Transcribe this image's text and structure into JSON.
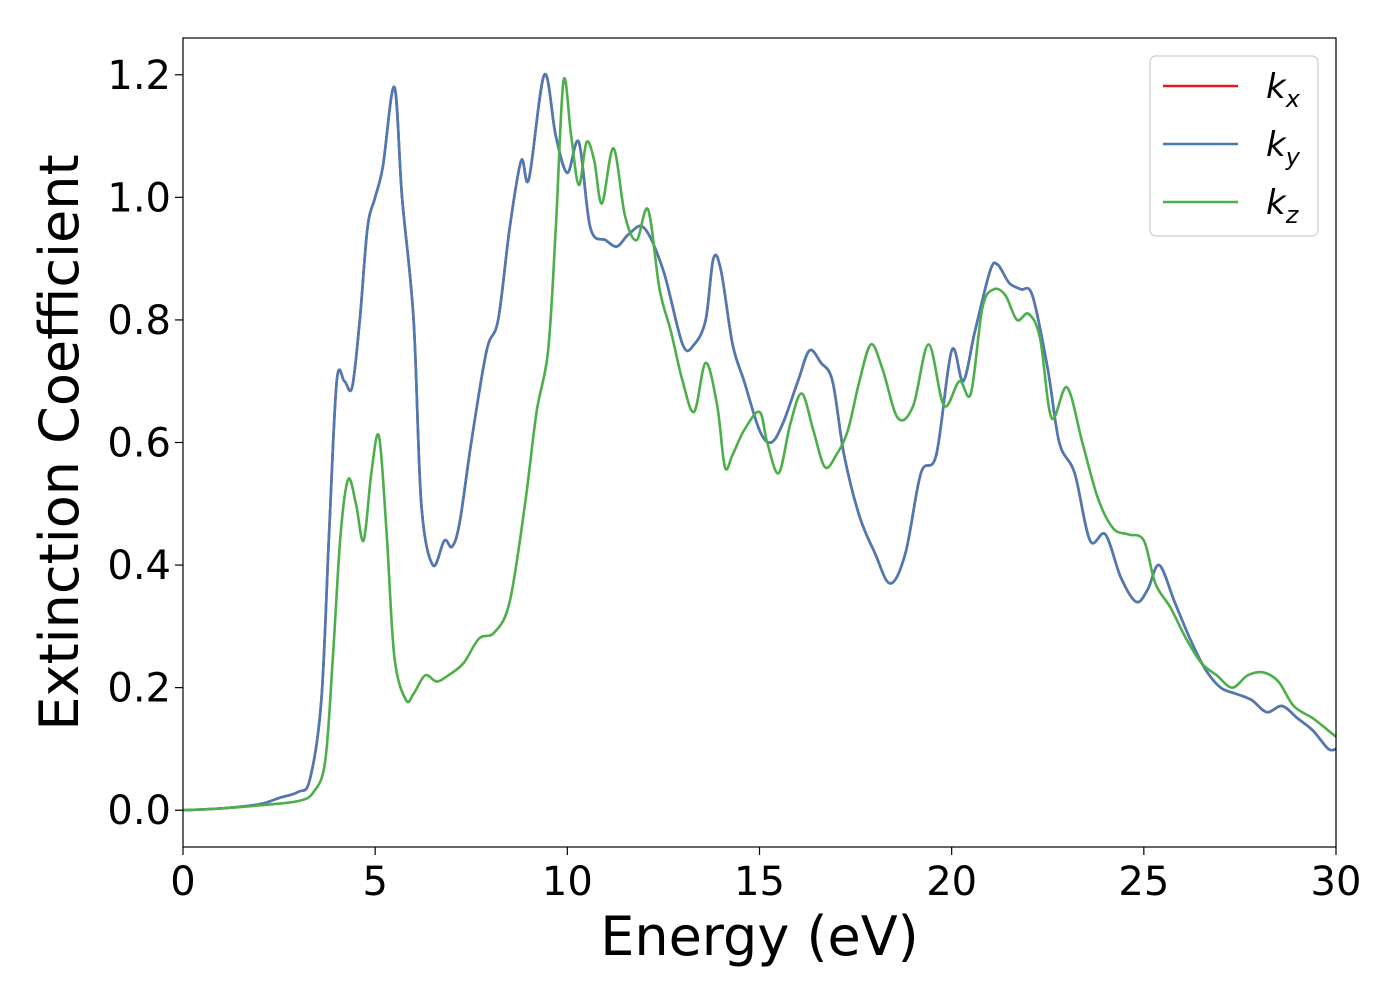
{
  "chart_data": {
    "type": "line",
    "xlabel": "Energy (eV)",
    "ylabel": "Extinction Coefficient",
    "xlim": [
      0,
      30
    ],
    "ylim": [
      -0.06,
      1.26
    ],
    "xticks": [
      "0",
      "5",
      "10",
      "15",
      "20",
      "25",
      "30"
    ],
    "yticks": [
      "0.0",
      "0.2",
      "0.4",
      "0.6",
      "0.8",
      "1.0",
      "1.2"
    ],
    "grid": false,
    "legend_position": "top-right",
    "legend": [
      {
        "base": "k",
        "sub": "x",
        "color": "#e41a1c"
      },
      {
        "base": "k",
        "sub": "y",
        "color": "#4a7bb7"
      },
      {
        "base": "k",
        "sub": "z",
        "color": "#4daf4a"
      }
    ],
    "series": [
      {
        "name": "k_x",
        "color": "#e41a1c",
        "x": [
          0,
          1,
          2,
          2.5,
          3,
          3.3,
          3.6,
          3.8,
          4.0,
          4.2,
          4.4,
          4.6,
          4.8,
          5.0,
          5.2,
          5.5,
          5.7,
          6.0,
          6.2,
          6.5,
          6.8,
          7.0,
          7.2,
          7.5,
          7.9,
          8.2,
          8.5,
          8.8,
          9.0,
          9.4,
          9.7,
          10.0,
          10.3,
          10.6,
          11.0,
          11.3,
          11.6,
          12.0,
          12.5,
          13.0,
          13.3,
          13.6,
          13.8,
          14.0,
          14.3,
          14.6,
          15.0,
          15.3,
          15.6,
          16.0,
          16.3,
          16.6,
          16.9,
          17.2,
          17.6,
          18.0,
          18.4,
          18.8,
          19.2,
          19.6,
          20.0,
          20.3,
          20.6,
          21.0,
          21.2,
          21.5,
          21.8,
          22.1,
          22.5,
          22.8,
          23.2,
          23.6,
          24.0,
          24.4,
          24.8,
          25.1,
          25.4,
          25.8,
          26.2,
          26.6,
          27.0,
          27.4,
          27.8,
          28.2,
          28.6,
          29.0,
          29.4,
          29.8,
          30.0
        ],
        "y": [
          0,
          0.003,
          0.01,
          0.02,
          0.03,
          0.05,
          0.18,
          0.45,
          0.7,
          0.7,
          0.69,
          0.8,
          0.95,
          1.0,
          1.05,
          1.18,
          1.0,
          0.8,
          0.5,
          0.4,
          0.44,
          0.43,
          0.47,
          0.6,
          0.75,
          0.8,
          0.95,
          1.06,
          1.03,
          1.2,
          1.1,
          1.04,
          1.09,
          0.95,
          0.93,
          0.92,
          0.94,
          0.95,
          0.88,
          0.76,
          0.76,
          0.8,
          0.9,
          0.88,
          0.76,
          0.7,
          0.62,
          0.6,
          0.63,
          0.7,
          0.75,
          0.73,
          0.7,
          0.58,
          0.48,
          0.42,
          0.37,
          0.42,
          0.55,
          0.58,
          0.75,
          0.7,
          0.78,
          0.88,
          0.89,
          0.86,
          0.85,
          0.84,
          0.72,
          0.6,
          0.55,
          0.44,
          0.45,
          0.38,
          0.34,
          0.36,
          0.4,
          0.34,
          0.28,
          0.23,
          0.2,
          0.19,
          0.18,
          0.16,
          0.17,
          0.15,
          0.13,
          0.1,
          0.1
        ]
      },
      {
        "name": "k_y",
        "color": "#4a7bb7",
        "x": [
          0,
          1,
          2,
          2.5,
          3,
          3.3,
          3.6,
          3.8,
          4.0,
          4.2,
          4.4,
          4.6,
          4.8,
          5.0,
          5.2,
          5.5,
          5.7,
          6.0,
          6.2,
          6.5,
          6.8,
          7.0,
          7.2,
          7.5,
          7.9,
          8.2,
          8.5,
          8.8,
          9.0,
          9.4,
          9.7,
          10.0,
          10.3,
          10.6,
          11.0,
          11.3,
          11.6,
          12.0,
          12.5,
          13.0,
          13.3,
          13.6,
          13.8,
          14.0,
          14.3,
          14.6,
          15.0,
          15.3,
          15.6,
          16.0,
          16.3,
          16.6,
          16.9,
          17.2,
          17.6,
          18.0,
          18.4,
          18.8,
          19.2,
          19.6,
          20.0,
          20.3,
          20.6,
          21.0,
          21.2,
          21.5,
          21.8,
          22.1,
          22.5,
          22.8,
          23.2,
          23.6,
          24.0,
          24.4,
          24.8,
          25.1,
          25.4,
          25.8,
          26.2,
          26.6,
          27.0,
          27.4,
          27.8,
          28.2,
          28.6,
          29.0,
          29.4,
          29.8,
          30.0
        ],
        "y": [
          0,
          0.003,
          0.01,
          0.02,
          0.03,
          0.05,
          0.18,
          0.45,
          0.7,
          0.7,
          0.69,
          0.8,
          0.95,
          1.0,
          1.05,
          1.18,
          1.0,
          0.8,
          0.5,
          0.4,
          0.44,
          0.43,
          0.47,
          0.6,
          0.75,
          0.8,
          0.95,
          1.06,
          1.03,
          1.2,
          1.1,
          1.04,
          1.09,
          0.95,
          0.93,
          0.92,
          0.94,
          0.95,
          0.88,
          0.76,
          0.76,
          0.8,
          0.9,
          0.88,
          0.76,
          0.7,
          0.62,
          0.6,
          0.63,
          0.7,
          0.75,
          0.73,
          0.7,
          0.58,
          0.48,
          0.42,
          0.37,
          0.42,
          0.55,
          0.58,
          0.75,
          0.7,
          0.78,
          0.88,
          0.89,
          0.86,
          0.85,
          0.84,
          0.72,
          0.6,
          0.55,
          0.44,
          0.45,
          0.38,
          0.34,
          0.36,
          0.4,
          0.34,
          0.28,
          0.23,
          0.2,
          0.19,
          0.18,
          0.16,
          0.17,
          0.15,
          0.13,
          0.1,
          0.1
        ]
      },
      {
        "name": "k_z",
        "color": "#4daf4a",
        "x": [
          0,
          1,
          2,
          3,
          3.4,
          3.7,
          3.9,
          4.1,
          4.3,
          4.5,
          4.7,
          4.9,
          5.1,
          5.3,
          5.5,
          5.8,
          6.0,
          6.3,
          6.6,
          6.9,
          7.3,
          7.7,
          8.1,
          8.5,
          8.9,
          9.2,
          9.5,
          9.7,
          9.9,
          10.1,
          10.3,
          10.5,
          10.7,
          10.9,
          11.2,
          11.5,
          11.8,
          12.1,
          12.4,
          12.7,
          13.0,
          13.3,
          13.6,
          13.9,
          14.1,
          14.3,
          14.6,
          15.0,
          15.2,
          15.5,
          15.8,
          16.1,
          16.4,
          16.7,
          17.0,
          17.3,
          17.6,
          17.9,
          18.2,
          18.6,
          19.0,
          19.4,
          19.8,
          20.2,
          20.5,
          20.8,
          21.1,
          21.4,
          21.7,
          22.0,
          22.3,
          22.6,
          23.0,
          23.4,
          23.8,
          24.2,
          24.6,
          25.0,
          25.3,
          25.7,
          26.1,
          26.5,
          26.9,
          27.3,
          27.7,
          28.1,
          28.5,
          28.9,
          29.4,
          29.8,
          30.0
        ],
        "y": [
          0,
          0.003,
          0.008,
          0.015,
          0.03,
          0.08,
          0.25,
          0.45,
          0.54,
          0.5,
          0.44,
          0.55,
          0.61,
          0.45,
          0.25,
          0.18,
          0.19,
          0.22,
          0.21,
          0.22,
          0.24,
          0.28,
          0.29,
          0.34,
          0.5,
          0.65,
          0.75,
          0.95,
          1.19,
          1.1,
          1.02,
          1.09,
          1.06,
          0.99,
          1.08,
          0.97,
          0.93,
          0.98,
          0.85,
          0.78,
          0.7,
          0.65,
          0.73,
          0.66,
          0.56,
          0.58,
          0.62,
          0.65,
          0.6,
          0.55,
          0.63,
          0.68,
          0.62,
          0.56,
          0.58,
          0.62,
          0.7,
          0.76,
          0.72,
          0.64,
          0.66,
          0.76,
          0.66,
          0.7,
          0.68,
          0.82,
          0.85,
          0.84,
          0.8,
          0.81,
          0.77,
          0.64,
          0.69,
          0.6,
          0.51,
          0.46,
          0.45,
          0.44,
          0.37,
          0.33,
          0.28,
          0.24,
          0.22,
          0.2,
          0.22,
          0.225,
          0.21,
          0.17,
          0.15,
          0.13,
          0.12
        ]
      }
    ]
  }
}
